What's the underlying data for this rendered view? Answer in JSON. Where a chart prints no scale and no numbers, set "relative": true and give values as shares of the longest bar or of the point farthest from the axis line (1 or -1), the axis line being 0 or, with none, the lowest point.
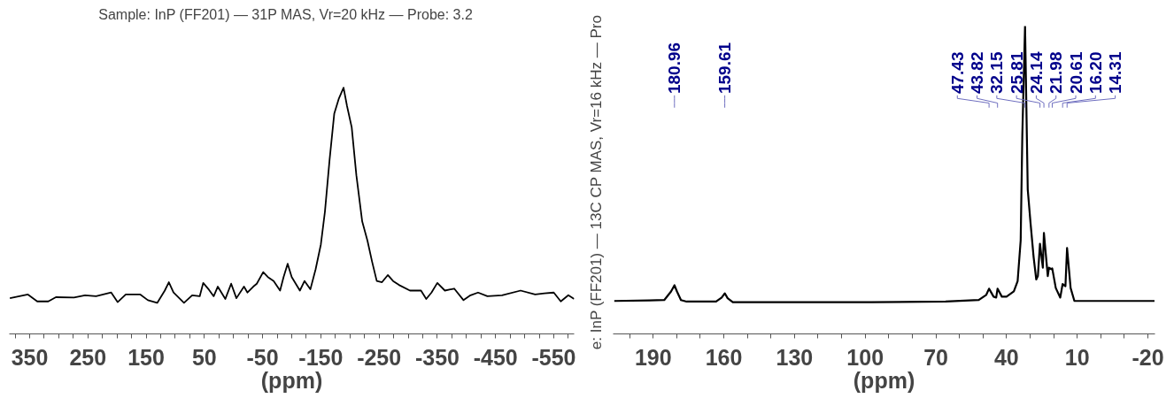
{
  "chart_data": [
    {
      "type": "line",
      "title": "Sample:  InP (FF201)  — 31P MAS, Vr=20 kHz  — Probe: 3.2",
      "xlabel": "(ppm)",
      "relative": true,
      "grid": false,
      "xlim": [
        385,
        -585
      ],
      "xticks": [
        {
          "value": 375,
          "label": null
        },
        350,
        {
          "value": 325,
          "label": null
        },
        {
          "value": 300,
          "label": null
        },
        {
          "value": 275,
          "label": null
        },
        250,
        {
          "value": 225,
          "label": null
        },
        {
          "value": 200,
          "label": null
        },
        {
          "value": 175,
          "label": null
        },
        150,
        {
          "value": 125,
          "label": null
        },
        {
          "value": 100,
          "label": null
        },
        {
          "value": 75,
          "label": null
        },
        50,
        {
          "value": 25,
          "label": null
        },
        {
          "value": 0,
          "label": null
        },
        {
          "value": -25,
          "label": null
        },
        -50,
        {
          "value": -75,
          "label": null
        },
        {
          "value": -100,
          "label": null
        },
        {
          "value": -125,
          "label": null
        },
        -150,
        {
          "value": -175,
          "label": null
        },
        {
          "value": -200,
          "label": null
        },
        {
          "value": -225,
          "label": null
        },
        -250,
        {
          "value": -275,
          "label": null
        },
        {
          "value": -300,
          "label": null
        },
        {
          "value": -325,
          "label": null
        },
        -350,
        {
          "value": -375,
          "label": null
        },
        {
          "value": -400,
          "label": null
        },
        {
          "value": -425,
          "label": null
        },
        -450,
        {
          "value": -475,
          "label": null
        },
        {
          "value": -500,
          "label": null
        },
        {
          "value": -525,
          "label": null
        },
        -550,
        {
          "value": -575,
          "label": null
        }
      ],
      "series": [
        {
          "color": "#000000",
          "x": [
            384,
            353,
            337,
            318,
            305,
            274,
            255,
            236,
            210,
            199,
            185,
            160,
            147,
            131,
            118,
            111,
            103,
            85,
            71,
            58,
            52,
            42,
            34,
            27,
            14,
            4,
            -5,
            -18,
            -24,
            -34,
            -40,
            -51,
            -59,
            -69,
            -80,
            -86,
            -93,
            -100,
            -114,
            -122,
            -132,
            -141,
            -150,
            -157,
            -165,
            -173,
            -181,
            -189,
            -195,
            -203,
            -211,
            -221,
            -230,
            -238,
            -246,
            -255,
            -265,
            -274,
            -284,
            -303,
            -322,
            -331,
            -340,
            -350,
            -363,
            -379,
            -395,
            -407,
            -420,
            -436,
            -461,
            -493,
            -518,
            -534,
            -550,
            -562,
            -575,
            -585
          ],
          "values": [
            0.145,
            0.16,
            0.132,
            0.132,
            0.149,
            0.148,
            0.157,
            0.153,
            0.168,
            0.129,
            0.16,
            0.16,
            0.137,
            0.126,
            0.176,
            0.21,
            0.168,
            0.126,
            0.157,
            0.153,
            0.207,
            0.179,
            0.153,
            0.192,
            0.142,
            0.204,
            0.145,
            0.192,
            0.168,
            0.192,
            0.204,
            0.251,
            0.231,
            0.215,
            0.176,
            0.231,
            0.285,
            0.231,
            0.176,
            0.215,
            0.181,
            0.262,
            0.363,
            0.496,
            0.707,
            0.894,
            0.956,
            1.0,
            0.925,
            0.839,
            0.644,
            0.457,
            0.379,
            0.293,
            0.215,
            0.21,
            0.239,
            0.215,
            0.199,
            0.176,
            0.176,
            0.142,
            0.168,
            0.207,
            0.176,
            0.184,
            0.137,
            0.157,
            0.168,
            0.153,
            0.157,
            0.176,
            0.16,
            0.165,
            0.168,
            0.132,
            0.157,
            0.142
          ]
        }
      ]
    },
    {
      "type": "line",
      "ylabel": "e:  InP (FF201) — 13C CP MAS, Vr=16 kHz — Pro",
      "xlabel": "(ppm)",
      "relative": true,
      "grid": false,
      "xlim": [
        207,
        -23
      ],
      "xticks": [
        {
          "value": 200,
          "label": null
        },
        190,
        {
          "value": 180,
          "label": null
        },
        {
          "value": 170,
          "label": null
        },
        160,
        {
          "value": 150,
          "label": null
        },
        {
          "value": 140,
          "label": null
        },
        130,
        {
          "value": 120,
          "label": null
        },
        {
          "value": 110,
          "label": null
        },
        100,
        {
          "value": 90,
          "label": null
        },
        {
          "value": 80,
          "label": null
        },
        70,
        {
          "value": 60,
          "label": null
        },
        {
          "value": 50,
          "label": null
        },
        40,
        {
          "value": 30,
          "label": null
        },
        {
          "value": 20,
          "label": null
        },
        10,
        {
          "value": 0,
          "label": null
        },
        {
          "value": -10,
          "label": null
        },
        -20
      ],
      "series": [
        {
          "color": "#000000",
          "x": [
            206.5,
            191.6,
            185.3,
            182.4,
            180.96,
            179.9,
            178.2,
            175.8,
            163.3,
            160.9,
            159.61,
            158.4,
            156.2,
            128.7,
            97.3,
            65.9,
            51.8,
            48.6,
            47.43,
            45.5,
            44.4,
            43.82,
            42.0,
            40.0,
            36.9,
            35.3,
            34.0,
            33.3,
            32.15,
            31.0,
            29.8,
            28.5,
            27.4,
            26.7,
            25.81,
            24.6,
            24.14,
            22.5,
            21.98,
            20.8,
            20.61,
            19.1,
            17.2,
            16.2,
            15.0,
            14.31,
            12.8,
            11.2,
            3.1,
            -12.6,
            -22.8
          ],
          "values": [
            0.107,
            0.109,
            0.11,
            0.138,
            0.158,
            0.138,
            0.11,
            0.105,
            0.105,
            0.118,
            0.132,
            0.116,
            0.103,
            0.103,
            0.103,
            0.105,
            0.11,
            0.127,
            0.147,
            0.121,
            0.118,
            0.147,
            0.121,
            0.121,
            0.138,
            0.171,
            0.304,
            0.647,
            1.0,
            0.469,
            0.359,
            0.249,
            0.177,
            0.188,
            0.293,
            0.215,
            0.328,
            0.188,
            0.215,
            0.21,
            0.213,
            0.149,
            0.118,
            0.162,
            0.155,
            0.279,
            0.149,
            0.107,
            0.107,
            0.107,
            0.107
          ]
        }
      ],
      "annotations": [
        {
          "text": "180.96",
          "x": 180.96
        },
        {
          "text": "159.61",
          "x": 159.61
        },
        {
          "text": "47.43",
          "x": 47.43
        },
        {
          "text": "43.82",
          "x": 43.82
        },
        {
          "text": "32.15",
          "x": 32.15
        },
        {
          "text": "25.81",
          "x": 25.81
        },
        {
          "text": "24.14",
          "x": 24.14
        },
        {
          "text": "21.98",
          "x": 21.98
        },
        {
          "text": "20.61",
          "x": 20.61
        },
        {
          "text": "16.20",
          "x": 16.2
        },
        {
          "text": "14.31",
          "x": 14.31
        }
      ]
    }
  ]
}
